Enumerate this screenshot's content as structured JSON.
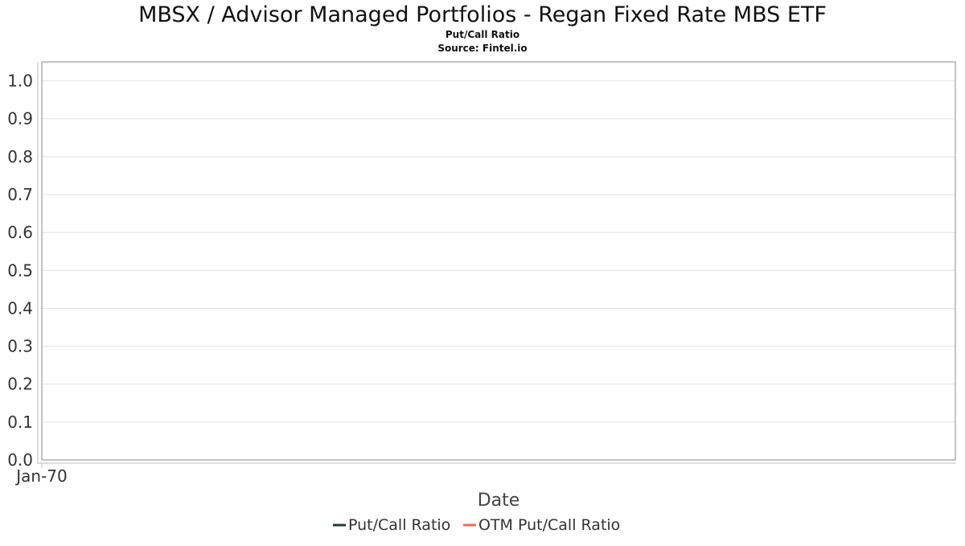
{
  "chart_data": {
    "type": "line",
    "title": "MBSX / Advisor Managed Portfolios - Regan Fixed Rate MBS ETF",
    "subtitle": "Put/Call Ratio",
    "source": "Source: Fintel.io",
    "xlabel": "Date",
    "ylabel": "",
    "ylim": [
      0.0,
      1.05
    ],
    "yticks": [
      "0.0",
      "0.1",
      "0.2",
      "0.3",
      "0.4",
      "0.5",
      "0.6",
      "0.7",
      "0.8",
      "0.9",
      "1.0"
    ],
    "xticks": [
      "Jan-70"
    ],
    "grid": true,
    "legend_position": "bottom",
    "series": [
      {
        "name": "Put/Call Ratio",
        "color": "#1f3d2b",
        "values": []
      },
      {
        "name": "OTM Put/Call Ratio",
        "color": "#f26b5b",
        "values": []
      }
    ]
  }
}
